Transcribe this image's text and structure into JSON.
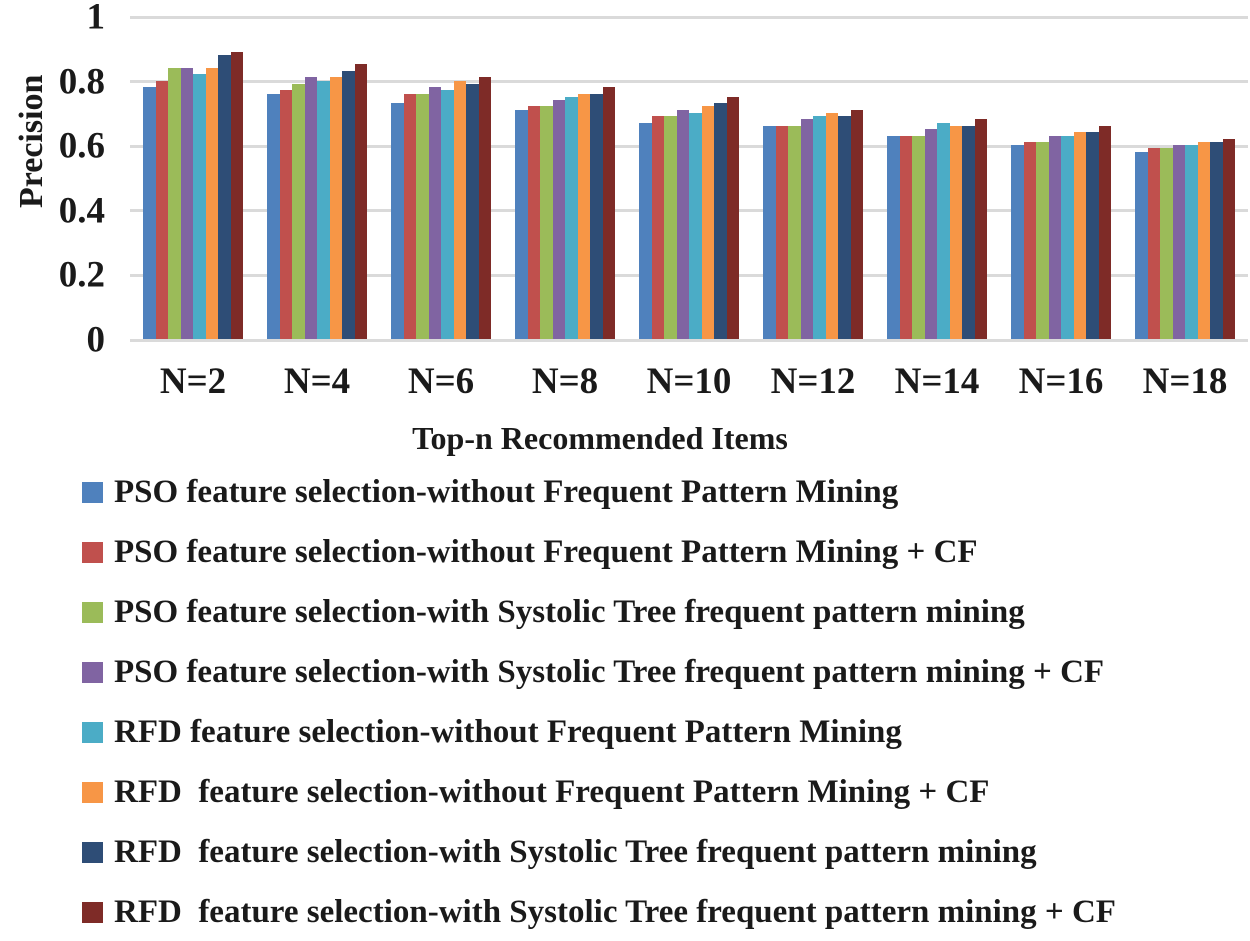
{
  "figure": {
    "background": "#ffffff",
    "text_color": "#1a1a1a",
    "gridline_color": "#dadada"
  },
  "chart_data": {
    "type": "bar",
    "title": "",
    "xlabel": "Top-n Recommended Items",
    "ylabel": "Precision",
    "categories": [
      "N=2",
      "N=4",
      "N=6",
      "N=8",
      "N=10",
      "N=12",
      "N=14",
      "N=16",
      "N=18"
    ],
    "series": [
      {
        "name": "PSO feature selection-without Frequent Pattern Mining",
        "color": "#4F81BD",
        "values": [
          0.78,
          0.76,
          0.73,
          0.71,
          0.67,
          0.66,
          0.63,
          0.6,
          0.58
        ]
      },
      {
        "name": "PSO feature selection-without Frequent Pattern Mining + CF",
        "color": "#C0504D",
        "values": [
          0.8,
          0.77,
          0.76,
          0.72,
          0.69,
          0.66,
          0.63,
          0.61,
          0.59
        ]
      },
      {
        "name": "PSO feature selection-with Systolic Tree frequent pattern mining",
        "color": "#9BBB59",
        "values": [
          0.84,
          0.79,
          0.76,
          0.72,
          0.69,
          0.66,
          0.63,
          0.61,
          0.59
        ]
      },
      {
        "name": "PSO feature selection-with Systolic Tree frequent pattern mining + CF",
        "color": "#8064A2",
        "values": [
          0.84,
          0.81,
          0.78,
          0.74,
          0.71,
          0.68,
          0.65,
          0.63,
          0.6
        ]
      },
      {
        "name": "RFD feature selection-without Frequent Pattern Mining",
        "color": "#4BACC6",
        "values": [
          0.82,
          0.8,
          0.77,
          0.75,
          0.7,
          0.69,
          0.67,
          0.63,
          0.6
        ]
      },
      {
        "name": "RFD  feature selection-without Frequent Pattern Mining + CF",
        "color": "#F79646",
        "values": [
          0.84,
          0.81,
          0.8,
          0.76,
          0.72,
          0.7,
          0.66,
          0.64,
          0.61
        ]
      },
      {
        "name": "RFD  feature selection-with Systolic Tree frequent pattern mining",
        "color": "#2E4D76",
        "values": [
          0.88,
          0.83,
          0.79,
          0.76,
          0.73,
          0.69,
          0.66,
          0.64,
          0.61
        ]
      },
      {
        "name": "RFD  feature selection-with Systolic Tree frequent pattern mining + CF",
        "color": "#7E2B27",
        "values": [
          0.89,
          0.85,
          0.81,
          0.78,
          0.75,
          0.71,
          0.68,
          0.66,
          0.62
        ]
      }
    ],
    "ylim": [
      0,
      1
    ],
    "yticks": [
      0,
      0.2,
      0.4,
      0.6,
      0.8,
      1
    ],
    "ytick_labels": [
      "0",
      "0.2",
      "0.4",
      "0.6",
      "0.8",
      "1"
    ],
    "grid": true,
    "legend_position": "bottom-left"
  }
}
